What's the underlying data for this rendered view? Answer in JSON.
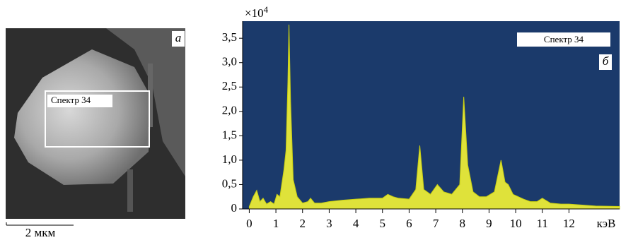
{
  "image_panel": {
    "panel_label": "а",
    "region_label": "Спектр 34",
    "scale_bar": "2 мкм"
  },
  "chart_data": {
    "type": "area",
    "panel_label": "б",
    "legend_label": "Спектр 34",
    "y_multiplier": {
      "base": "×10",
      "exponent": "4"
    },
    "x_unit": "кэВ",
    "color": "#dfe23a",
    "background": "#1b3a6b",
    "xlim": [
      -0.25,
      13.9
    ],
    "ylim": [
      0,
      3.85
    ],
    "xticks": [
      0,
      1,
      2,
      3,
      4,
      5,
      6,
      7,
      8,
      9,
      10,
      11,
      12
    ],
    "yticks": [
      0,
      {
        "value": 0.5,
        "label": "0,5"
      },
      {
        "value": 1.0,
        "label": "1,0"
      },
      {
        "value": 1.5,
        "label": "1,5"
      },
      {
        "value": 2.0,
        "label": "2,0"
      },
      {
        "value": 2.5,
        "label": "2,5"
      },
      {
        "value": 3.0,
        "label": "3,0"
      },
      {
        "value": 3.5,
        "label": "3,5"
      }
    ],
    "x": [
      0,
      0.15,
      0.28,
      0.4,
      0.52,
      0.65,
      0.8,
      0.93,
      1.04,
      1.15,
      1.3,
      1.38,
      1.45,
      1.49,
      1.55,
      1.65,
      1.8,
      2.0,
      2.2,
      2.3,
      2.45,
      2.7,
      3.0,
      3.5,
      4.0,
      4.5,
      5.0,
      5.2,
      5.4,
      5.6,
      6.0,
      6.25,
      6.4,
      6.55,
      6.8,
      7.06,
      7.3,
      7.6,
      7.9,
      8.05,
      8.2,
      8.4,
      8.64,
      8.9,
      9.2,
      9.45,
      9.6,
      9.72,
      9.9,
      10.3,
      10.55,
      10.8,
      11.0,
      11.3,
      11.7,
      12.0,
      12.5,
      13.0,
      13.9
    ],
    "values": [
      0.05,
      0.25,
      0.38,
      0.15,
      0.22,
      0.1,
      0.15,
      0.1,
      0.3,
      0.25,
      0.8,
      1.2,
      2.6,
      3.78,
      2.2,
      0.6,
      0.25,
      0.12,
      0.15,
      0.22,
      0.12,
      0.12,
      0.15,
      0.18,
      0.2,
      0.22,
      0.22,
      0.3,
      0.25,
      0.22,
      0.2,
      0.4,
      1.3,
      0.4,
      0.3,
      0.5,
      0.35,
      0.3,
      0.5,
      2.3,
      0.9,
      0.35,
      0.25,
      0.25,
      0.35,
      1.0,
      0.55,
      0.5,
      0.3,
      0.2,
      0.15,
      0.15,
      0.22,
      0.12,
      0.1,
      0.1,
      0.08,
      0.06,
      0.05
    ]
  }
}
